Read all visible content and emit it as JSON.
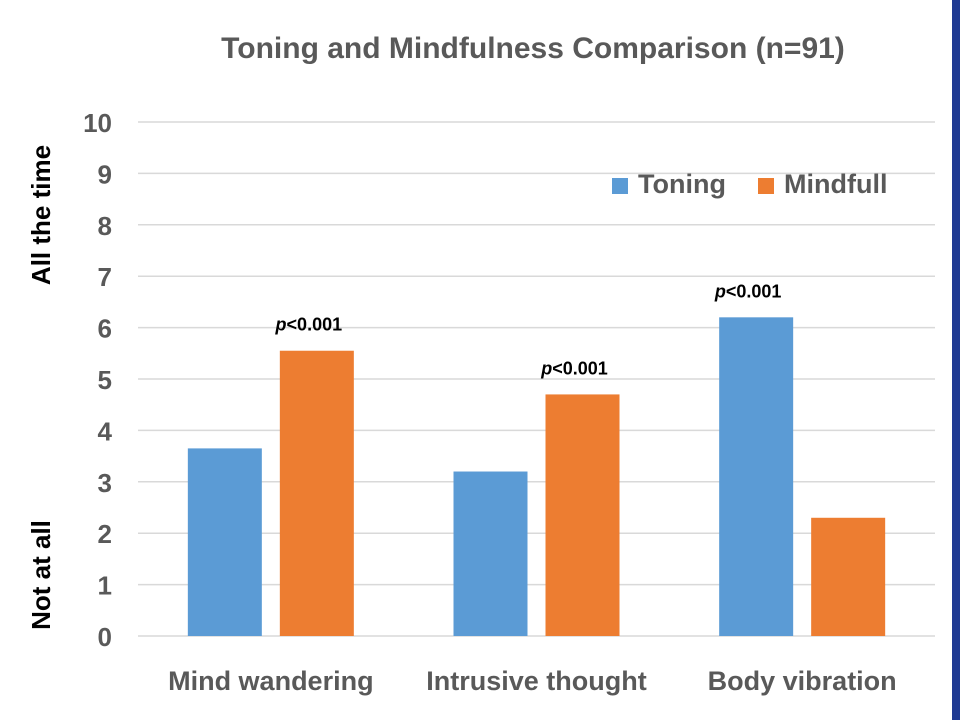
{
  "chart_data": {
    "type": "bar",
    "title": "Toning and Mindfulness Comparison (n=91)",
    "categories": [
      "Mind wandering",
      "Intrusive thought",
      "Body vibration"
    ],
    "series": [
      {
        "name": "Toning",
        "values": [
          3.65,
          3.2,
          6.2
        ],
        "color": "#5b9bd5"
      },
      {
        "name": "Mindfull",
        "values": [
          5.55,
          4.7,
          2.3
        ],
        "color": "#ed7d31"
      }
    ],
    "ylim": [
      0,
      10
    ],
    "yticks": [
      0,
      1,
      2,
      3,
      4,
      5,
      6,
      7,
      8,
      9,
      10
    ],
    "ylabel_top": "All the time",
    "ylabel_bottom": "Not at all",
    "grid": true,
    "legend_position": "top-right",
    "annotations": [
      {
        "category_index": 0,
        "series_index": 1,
        "prefix": "p",
        "text": "<0.001"
      },
      {
        "category_index": 1,
        "series_index": 1,
        "prefix": "p",
        "text": "<0.001"
      },
      {
        "category_index": 2,
        "series_index": 0,
        "prefix": "p",
        "text": "<0.001"
      }
    ],
    "colors": {
      "grid": "#d9d9d9",
      "text": "#595959",
      "title": "#595959",
      "edge_bar": "#1f3a93"
    }
  }
}
